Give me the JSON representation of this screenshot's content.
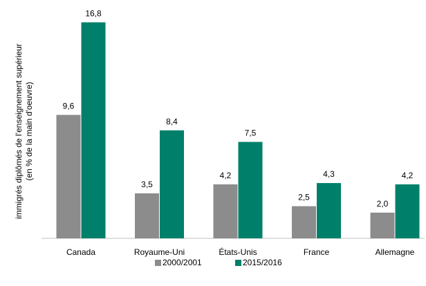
{
  "chart_data": {
    "type": "bar",
    "y_label": [
      "immigrés diplômés de l'enseignement supérieur",
      "(en % de la main d'oeuvre)"
    ],
    "categories": [
      "Canada",
      "Royaume-Uni",
      "États-Unis",
      "France",
      "Allemagne"
    ],
    "series": [
      {
        "name": "2000/2001",
        "color": "#8c8c8c",
        "values": [
          9.6,
          3.5,
          4.2,
          2.5,
          2.0
        ],
        "value_labels": [
          "9,6",
          "3,5",
          "4,2",
          "2,5",
          "2,0"
        ]
      },
      {
        "name": "2015/2016",
        "color": "#00806a",
        "values": [
          16.8,
          8.4,
          7.5,
          4.3,
          4.2
        ],
        "value_labels": [
          "16,8",
          "8,4",
          "7,5",
          "4,3",
          "4,2"
        ]
      }
    ],
    "ylim": [
      0,
      18
    ],
    "legend": "bottom"
  }
}
